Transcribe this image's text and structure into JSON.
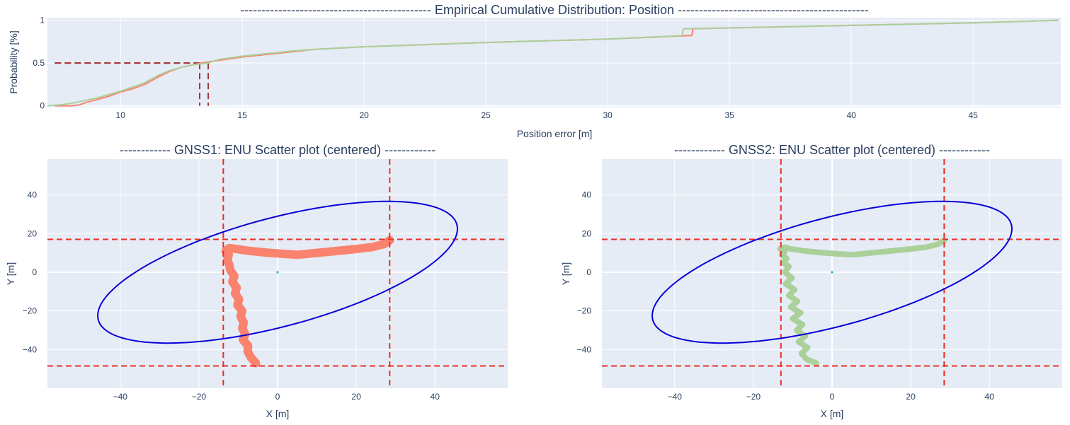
{
  "colors": {
    "gnss1": "#fa8370",
    "gnss2": "#abd09a",
    "plot_bg": "#e5ecf6",
    "grid": "#ffffff",
    "ellipse": "#0a00d8",
    "bounds": "#ec2e22",
    "median_marker": "#a83535",
    "text": "#2a3f5f"
  },
  "chart_data": [
    {
      "id": "ecdf",
      "type": "line",
      "title": "---------------------------------------------  Empirical Cumulative Distribution: Position  ---------------------------------------------",
      "xlabel": "Position error [m]",
      "ylabel": "Probability [%]",
      "xlim": [
        7,
        48.6
      ],
      "ylim": [
        -0.02,
        1.03
      ],
      "xticks": [
        10,
        15,
        20,
        25,
        30,
        35,
        40,
        45
      ],
      "yticks": [
        0,
        0.5,
        1
      ],
      "ytick_labels": [
        "0",
        "0.5",
        "1"
      ],
      "grid": true,
      "series": [
        {
          "color_key": "gnss1",
          "x": [
            7.3,
            8.0,
            8.3,
            8.6,
            9.0,
            9.5,
            10.0,
            10.5,
            11.0,
            11.5,
            12.0,
            12.5,
            13.0,
            13.3,
            14.0,
            15.0,
            16.0,
            17.0,
            18.0,
            20.0,
            25.0,
            30.0,
            33.3,
            33.45,
            33.5,
            35.0,
            40.0,
            45.0,
            48.5
          ],
          "y": [
            0.0,
            0.0,
            0.01,
            0.04,
            0.07,
            0.11,
            0.16,
            0.2,
            0.25,
            0.33,
            0.4,
            0.45,
            0.48,
            0.5,
            0.53,
            0.57,
            0.6,
            0.63,
            0.66,
            0.69,
            0.74,
            0.78,
            0.82,
            0.82,
            0.9,
            0.91,
            0.94,
            0.97,
            1.0
          ]
        },
        {
          "color_key": "gnss2",
          "x": [
            7.0,
            7.5,
            8.0,
            8.5,
            9.0,
            9.5,
            10.0,
            10.5,
            11.0,
            11.5,
            12.0,
            12.5,
            13.0,
            13.6,
            14.0,
            15.0,
            16.0,
            17.0,
            18.0,
            20.0,
            25.0,
            30.0,
            33.05,
            33.1,
            35.0,
            40.0,
            45.0,
            48.5
          ],
          "y": [
            0.0,
            0.01,
            0.03,
            0.06,
            0.09,
            0.13,
            0.17,
            0.22,
            0.27,
            0.35,
            0.41,
            0.45,
            0.48,
            0.5,
            0.54,
            0.58,
            0.61,
            0.64,
            0.66,
            0.69,
            0.74,
            0.78,
            0.82,
            0.9,
            0.91,
            0.94,
            0.97,
            1.0
          ]
        }
      ],
      "median_markers": [
        {
          "x": 13.25,
          "y": 0.5
        },
        {
          "x": 13.6,
          "y": 0.5
        }
      ]
    },
    {
      "id": "gnss1",
      "type": "scatter",
      "title": "------------  GNSS1: ENU Scatter plot (centered)  ------------",
      "xlabel": "X [m]",
      "ylabel": "Y [m]",
      "xlim": [
        -58.5,
        58.5
      ],
      "ylim": [
        -60,
        58.5
      ],
      "xticks": [
        -40,
        -20,
        0,
        20,
        40
      ],
      "xtick_labels": [
        "−40",
        "−20",
        "0",
        "20",
        "40"
      ],
      "yticks": [
        -40,
        -20,
        0,
        20,
        40
      ],
      "ytick_labels": [
        "−40",
        "−20",
        "0",
        "20",
        "40"
      ],
      "grid": true,
      "color_key": "gnss1",
      "trajectory": {
        "x": [
          -5.5,
          -6.8,
          -7.6,
          -7.5,
          -8.8,
          -8.2,
          -9.0,
          -8.6,
          -9.4,
          -9.0,
          -10.2,
          -9.8,
          -10.8,
          -10.4,
          -11.5,
          -11.0,
          -12.0,
          -12.3,
          -12.8,
          -12.4,
          -13.2,
          -12.3,
          -10.5,
          -7.0,
          -2.0,
          5.0,
          10.0,
          15.0,
          20.0,
          24.0,
          27.0,
          28.5
        ],
        "y": [
          -47.0,
          -44.0,
          -41.0,
          -38.0,
          -35.0,
          -32.0,
          -29.0,
          -26.0,
          -23.0,
          -20.0,
          -17.0,
          -14.0,
          -11.0,
          -8.0,
          -5.0,
          -2.0,
          1.0,
          4.0,
          6.5,
          9.0,
          11.0,
          12.5,
          12.0,
          11.0,
          10.0,
          9.0,
          10.0,
          11.0,
          12.0,
          13.0,
          14.5,
          16.5
        ]
      },
      "stroke_width": 12,
      "center_marker": {
        "x": 0,
        "y": 0
      },
      "ellipse": {
        "cx": 0,
        "cy": 0,
        "rx": 53,
        "ry": 25,
        "angle_deg": 35
      },
      "bounds": {
        "x": [
          -13.8,
          28.5
        ],
        "y": [
          -48.5,
          17.0
        ]
      }
    },
    {
      "id": "gnss2",
      "type": "scatter",
      "title": "------------  GNSS2: ENU Scatter plot (centered)  ------------",
      "xlabel": "X [m]",
      "ylabel": "Y [m]",
      "xlim": [
        -58.5,
        58.5
      ],
      "ylim": [
        -60,
        58.5
      ],
      "xticks": [
        -40,
        -20,
        0,
        20,
        40
      ],
      "xtick_labels": [
        "−40",
        "−20",
        "0",
        "20",
        "40"
      ],
      "yticks": [
        -40,
        -20,
        0,
        20,
        40
      ],
      "ytick_labels": [
        "−40",
        "−20",
        "0",
        "20",
        "40"
      ],
      "grid": true,
      "color_key": "gnss2",
      "trajectory": {
        "x": [
          -4.0,
          -6.5,
          -7.8,
          -6.2,
          -8.5,
          -6.8,
          -9.0,
          -7.5,
          -10.0,
          -8.0,
          -10.5,
          -8.8,
          -11.0,
          -9.5,
          -11.8,
          -10.2,
          -12.0,
          -11.0,
          -12.5,
          -11.5,
          -12.8,
          -12.0,
          -13.2,
          -12.0,
          -10.5,
          -7.0,
          -2.0,
          5.0,
          10.0,
          15.0,
          20.0,
          24.0,
          27.0,
          28.5
        ],
        "y": [
          -47.0,
          -45.0,
          -42.0,
          -39.0,
          -36.0,
          -33.0,
          -30.0,
          -27.0,
          -24.0,
          -21.0,
          -18.0,
          -15.0,
          -12.0,
          -9.0,
          -6.0,
          -3.0,
          0.0,
          3.0,
          5.0,
          7.0,
          9.0,
          10.5,
          12.0,
          13.0,
          12.0,
          11.0,
          10.0,
          9.0,
          10.0,
          11.0,
          12.0,
          13.0,
          14.5,
          16.5
        ]
      },
      "stroke_width": 8,
      "center_marker": {
        "x": 0,
        "y": 0
      },
      "ellipse": {
        "cx": 0,
        "cy": 0,
        "rx": 53,
        "ry": 25,
        "angle_deg": 35
      },
      "bounds": {
        "x": [
          -13.0,
          28.5
        ],
        "y": [
          -48.5,
          17.0
        ]
      }
    }
  ]
}
